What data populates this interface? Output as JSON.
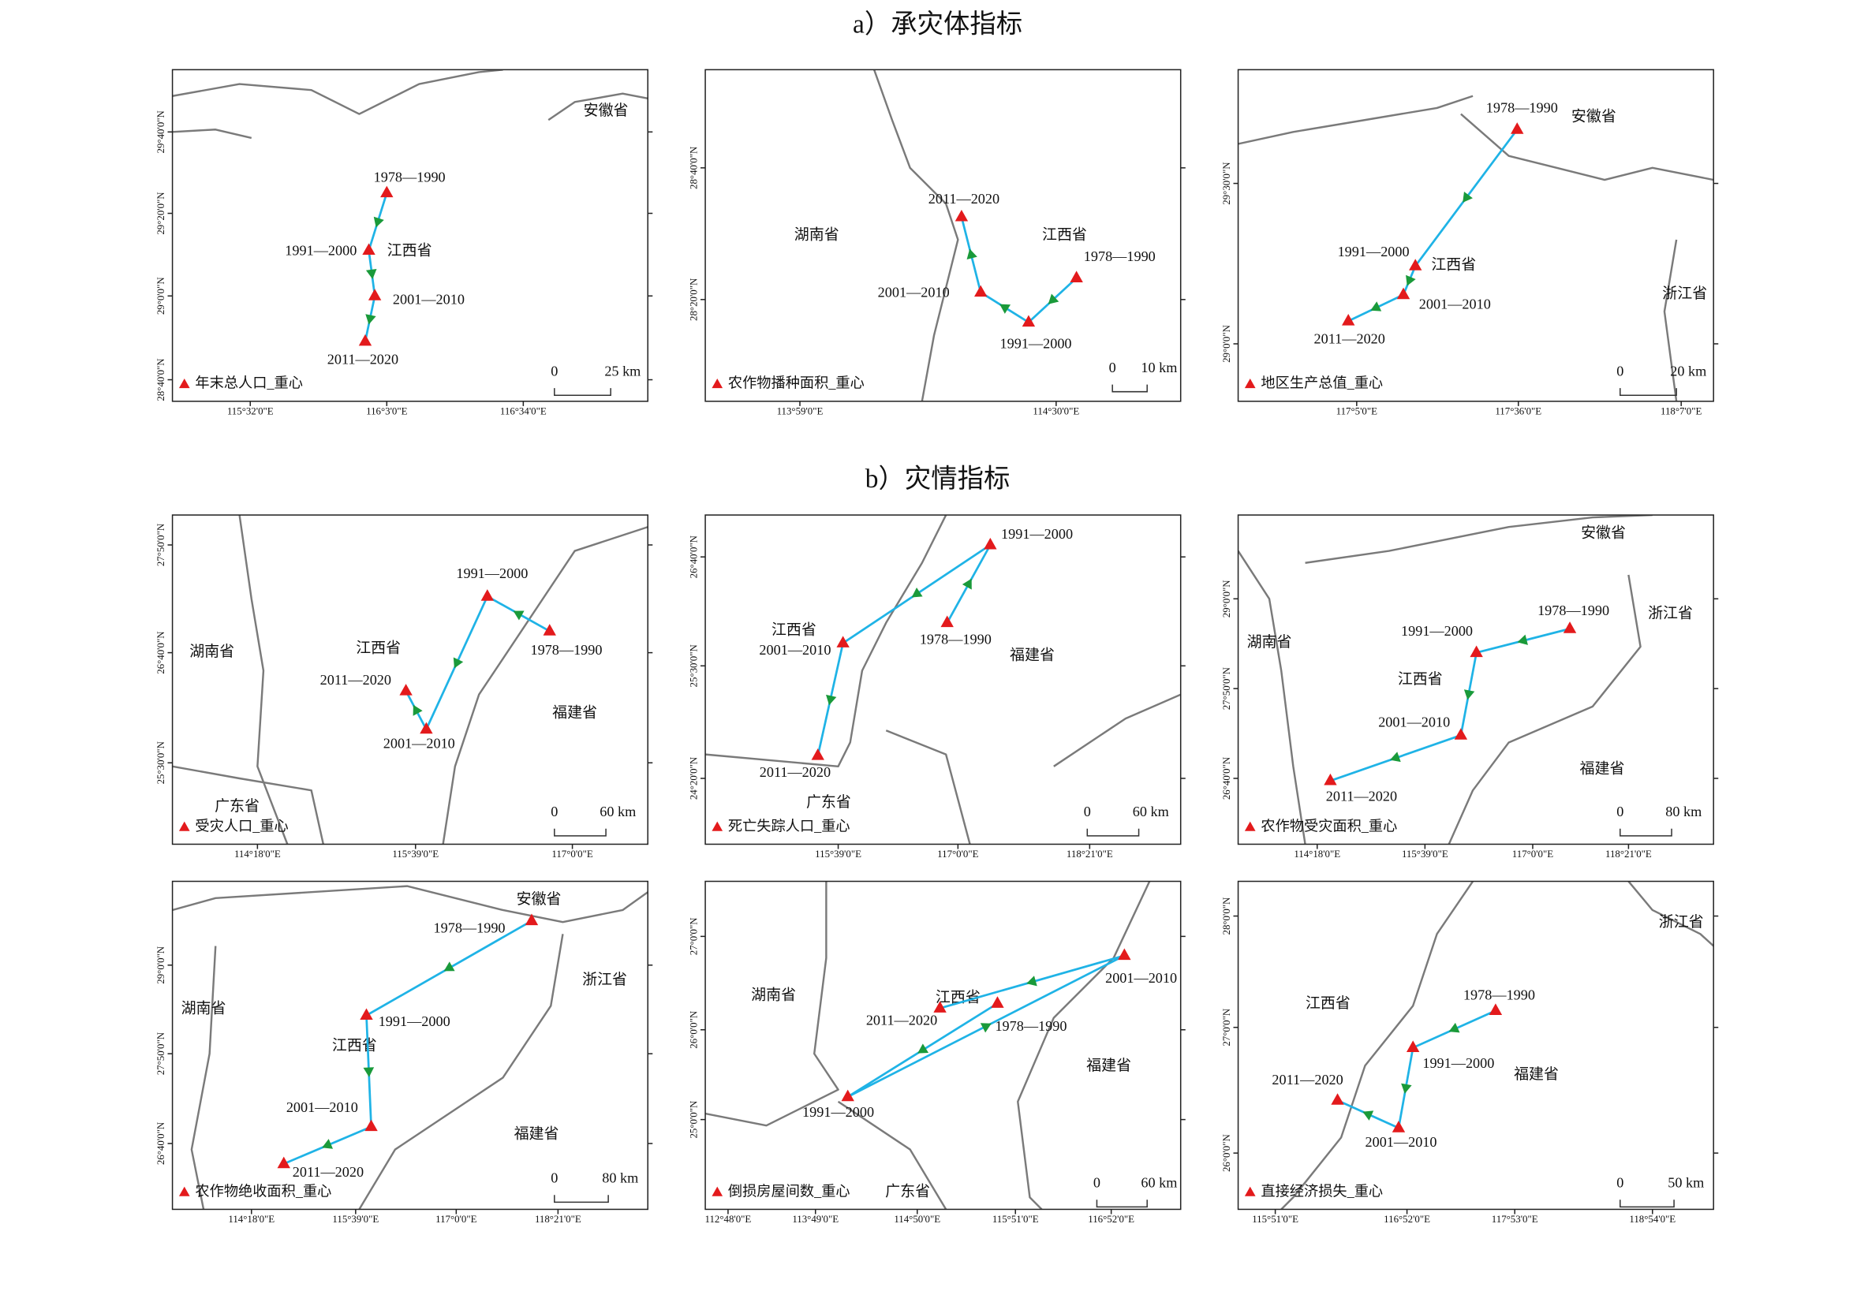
{
  "sections": [
    {
      "title": "a）承灾体指标",
      "maps": [
        {
          "legend": "年末总人口_重心",
          "regions": [
            "安徽省",
            "江西省"
          ],
          "points": [
            "1978—1990",
            "1991—2000",
            "2001—2010",
            "2011—2020"
          ],
          "xticks": [
            "115°32'0\"E",
            "116°3'0\"E",
            "116°34'0\"E"
          ],
          "yticks": [
            "29°40'0\"N",
            "29°20'0\"N",
            "29°0'0\"N",
            "28°40'0\"N"
          ],
          "scale": [
            "0",
            "25 km"
          ]
        },
        {
          "legend": "农作物播种面积_重心",
          "regions": [
            "湖南省",
            "江西省"
          ],
          "points": [
            "1978—1990",
            "1991—2000",
            "2001—2010",
            "2011—2020"
          ],
          "xticks": [
            "113°59'0\"E",
            "114°30'0\"E"
          ],
          "yticks": [
            "28°40'0\"N",
            "28°20'0\"N"
          ],
          "scale": [
            "0",
            "10 km"
          ]
        },
        {
          "legend": "地区生产总值_重心",
          "regions": [
            "安徽省",
            "江西省",
            "浙江省"
          ],
          "points": [
            "1978—1990",
            "1991—2000",
            "2001—2010",
            "2011—2020"
          ],
          "xticks": [
            "117°5'0\"E",
            "117°36'0\"E",
            "118°7'0\"E"
          ],
          "yticks": [
            "29°30'0\"N",
            "29°0'0\"N"
          ],
          "scale": [
            "0",
            "20 km"
          ]
        }
      ]
    },
    {
      "title": "b）灾情指标",
      "maps": [
        {
          "legend": "受灾人口_重心",
          "regions": [
            "湖南省",
            "江西省",
            "福建省",
            "广东省"
          ],
          "points": [
            "1978—1990",
            "1991—2000",
            "2001—2010",
            "2011—2020"
          ],
          "xticks": [
            "114°18'0\"E",
            "115°39'0\"E",
            "117°0'0\"E"
          ],
          "yticks": [
            "27°50'0\"N",
            "26°40'0\"N",
            "25°30'0\"N"
          ],
          "scale": [
            "0",
            "60 km"
          ]
        },
        {
          "legend": "死亡失踪人口_重心",
          "regions": [
            "江西省",
            "福建省",
            "广东省"
          ],
          "points": [
            "1978—1990",
            "1991—2000",
            "2001—2010",
            "2011—2020"
          ],
          "xticks": [
            "115°39'0\"E",
            "117°0'0\"E",
            "118°21'0\"E"
          ],
          "yticks": [
            "26°40'0\"N",
            "25°30'0\"N",
            "24°20'0\"N"
          ],
          "scale": [
            "0",
            "60 km"
          ]
        },
        {
          "legend": "农作物受灾面积_重心",
          "regions": [
            "安徽省",
            "浙江省",
            "湖南省",
            "江西省",
            "福建省"
          ],
          "points": [
            "1978—1990",
            "1991—2000",
            "2001—2010",
            "2011—2020"
          ],
          "xticks": [
            "114°18'0\"E",
            "115°39'0\"E",
            "117°0'0\"E",
            "118°21'0\"E"
          ],
          "yticks": [
            "29°0'0\"N",
            "27°50'0\"N",
            "26°40'0\"N"
          ],
          "scale": [
            "0",
            "80 km"
          ]
        },
        {
          "legend": "农作物绝收面积_重心",
          "regions": [
            "安徽省",
            "浙江省",
            "湖南省",
            "江西省",
            "福建省"
          ],
          "points": [
            "1978—1990",
            "1991—2000",
            "2001—2010",
            "2011—2020"
          ],
          "xticks": [
            "114°18'0\"E",
            "115°39'0\"E",
            "117°0'0\"E",
            "118°21'0\"E"
          ],
          "yticks": [
            "29°0'0\"N",
            "27°50'0\"N",
            "26°40'0\"N"
          ],
          "scale": [
            "0",
            "80 km"
          ]
        },
        {
          "legend": "倒损房屋间数_重心",
          "regions": [
            "江西省",
            "湖南省",
            "福建省",
            "广东省"
          ],
          "points": [
            "1978—1990",
            "1991—2000",
            "2001—2010",
            "2011—2020"
          ],
          "xticks": [
            "112°48'0\"E",
            "113°49'0\"E",
            "114°50'0\"E",
            "115°51'0\"E",
            "116°52'0\"E"
          ],
          "yticks": [
            "27°0'0\"N",
            "26°0'0\"N",
            "25°0'0\"N"
          ],
          "scale": [
            "0",
            "60 km"
          ]
        },
        {
          "legend": "直接经济损失_重心",
          "regions": [
            "浙江省",
            "江西省",
            "福建省"
          ],
          "points": [
            "1978—1990",
            "1991—2000",
            "2001—2010",
            "2011—2020"
          ],
          "xticks": [
            "115°51'0\"E",
            "116°52'0\"E",
            "117°53'0\"E",
            "118°54'0\"E"
          ],
          "yticks": [
            "28°0'0\"N",
            "27°0'0\"N",
            "26°0'0\"N"
          ],
          "scale": [
            "0",
            "50 km"
          ]
        }
      ]
    }
  ]
}
